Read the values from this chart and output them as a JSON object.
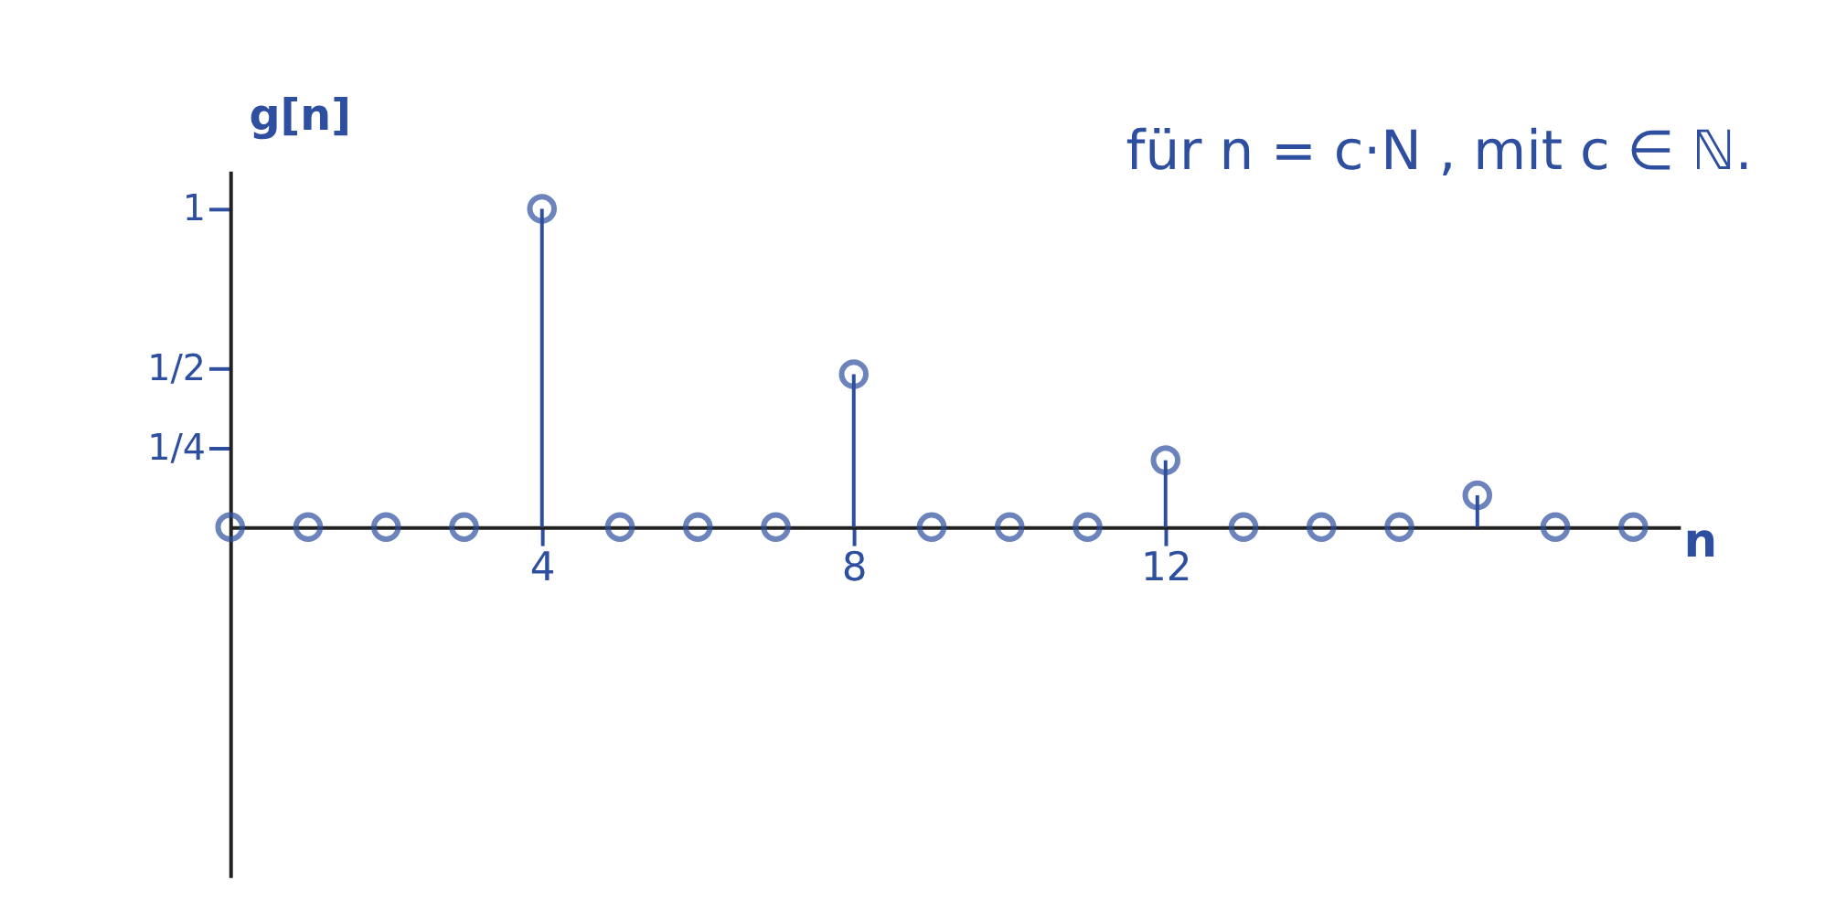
{
  "chart_data": {
    "type": "lollipop",
    "xlabel": "n",
    "ylabel": "g[n]",
    "annotations": [
      "für n = c·N , mit c ∈ ℕ."
    ],
    "x": [
      0,
      1,
      2,
      3,
      4,
      5,
      6,
      7,
      8,
      9,
      10,
      11,
      12,
      13,
      14,
      15,
      16,
      17,
      18
    ],
    "series": [
      {
        "color": "#2e4fa0",
        "values": [
          0,
          0,
          0,
          0,
          1,
          0,
          0,
          0,
          0.48,
          0,
          0,
          0,
          0.21,
          0,
          0,
          0,
          0.1,
          0,
          0
        ]
      }
    ],
    "xlim": [
      0,
      18.6
    ],
    "ylim": [
      -1.1,
      1.12
    ],
    "xticks": [
      4,
      8,
      12
    ],
    "yticks": [
      {
        "value": 1,
        "label": "1"
      },
      {
        "value": 0.5,
        "label": "1/2"
      },
      {
        "value": 0.25,
        "label": "1/4"
      }
    ],
    "grid": false,
    "marker": "circle",
    "line_style": "solid"
  }
}
